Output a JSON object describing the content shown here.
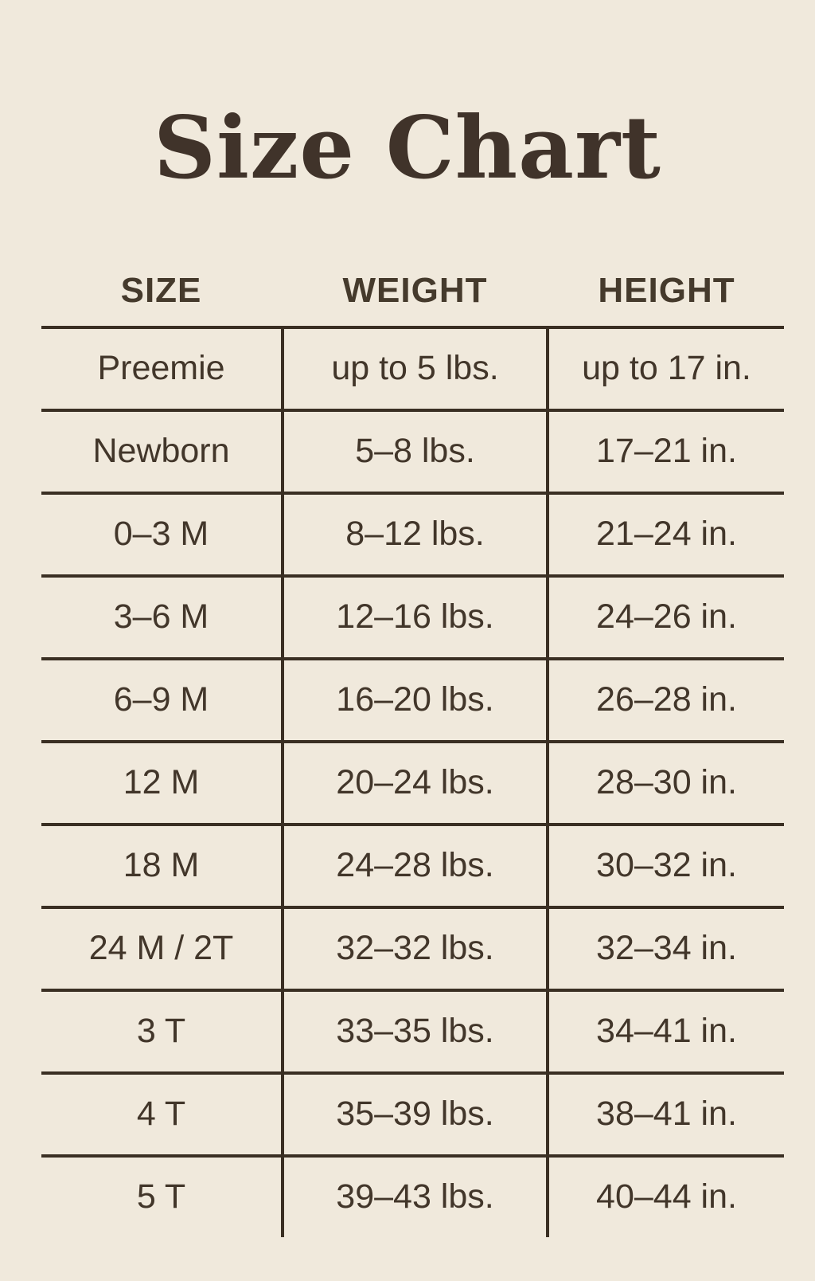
{
  "page": {
    "title": "Size Chart",
    "background_color": "#f0e9dc",
    "text_color": "#42362a",
    "line_color": "#3a2f23"
  },
  "table": {
    "headers": [
      "SIZE",
      "WEIGHT",
      "HEIGHT"
    ],
    "rows": [
      {
        "size": "Preemie",
        "weight": "up to 5 lbs.",
        "height": "up to 17 in."
      },
      {
        "size": "Newborn",
        "weight": "5–8 lbs.",
        "height": "17–21 in."
      },
      {
        "size": "0–3 M",
        "weight": "8–12 lbs.",
        "height": "21–24 in."
      },
      {
        "size": "3–6 M",
        "weight": "12–16 lbs.",
        "height": "24–26 in."
      },
      {
        "size": "6–9 M",
        "weight": "16–20 lbs.",
        "height": "26–28 in."
      },
      {
        "size": "12 M",
        "weight": "20–24 lbs.",
        "height": "28–30 in."
      },
      {
        "size": "18 M",
        "weight": "24–28 lbs.",
        "height": "30–32 in."
      },
      {
        "size": "24 M / 2T",
        "weight": "32–32 lbs.",
        "height": "32–34 in."
      },
      {
        "size": "3 T",
        "weight": "33–35 lbs.",
        "height": "34–41 in."
      },
      {
        "size": "4 T",
        "weight": "35–39 lbs.",
        "height": "38–41 in."
      },
      {
        "size": "5 T",
        "weight": "39–43 lbs.",
        "height": "40–44 in."
      }
    ]
  },
  "chart_data": {
    "type": "table",
    "title": "Size Chart",
    "columns": [
      "SIZE",
      "WEIGHT",
      "HEIGHT"
    ],
    "rows": [
      [
        "Preemie",
        "up to 5 lbs.",
        "up to 17 in."
      ],
      [
        "Newborn",
        "5–8 lbs.",
        "17–21 in."
      ],
      [
        "0–3 M",
        "8–12 lbs.",
        "21–24 in."
      ],
      [
        "3–6 M",
        "12–16 lbs.",
        "24–26 in."
      ],
      [
        "6–9 M",
        "16–20 lbs.",
        "26–28 in."
      ],
      [
        "12 M",
        "20–24 lbs.",
        "28–30 in."
      ],
      [
        "18 M",
        "24–28 lbs.",
        "30–32 in."
      ],
      [
        "24 M / 2T",
        "32–32 lbs.",
        "32–34 in."
      ],
      [
        "3 T",
        "33–35 lbs.",
        "34–41 in."
      ],
      [
        "4 T",
        "35–39 lbs.",
        "38–41 in."
      ],
      [
        "5 T",
        "39–43 lbs.",
        "40–44 in."
      ]
    ],
    "layout": {
      "grid": "horizontal rules between rows, vertical rules between columns, no outer border",
      "header_position": "top, outside ruled area"
    }
  }
}
